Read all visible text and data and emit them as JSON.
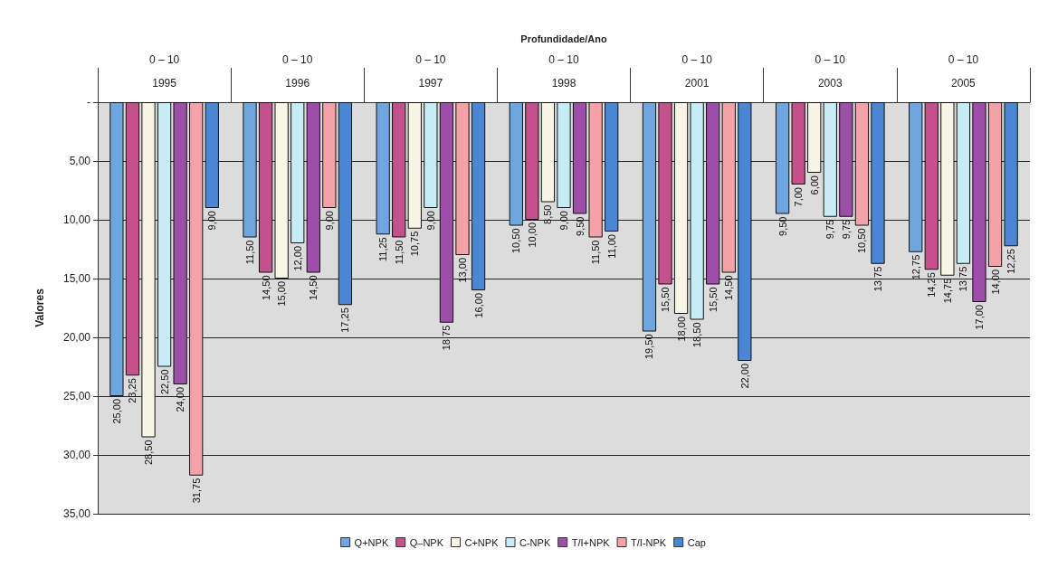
{
  "chart_data": {
    "type": "bar",
    "xlabel": "Profundidade/Ano",
    "ylabel": "Valores",
    "categories": [
      "0 – 10\n1995",
      "0 – 10\n1996",
      "0 – 10\n1997",
      "0 – 10\n1998",
      "0 – 10\n2001",
      "0 – 10\n2003",
      "0 – 10\n2005"
    ],
    "series": [
      {
        "name": "Q+NPK",
        "color": "#6fa6e0",
        "values": [
          25.0,
          11.5,
          11.25,
          10.5,
          19.5,
          9.5,
          12.75
        ],
        "value_labels": [
          "25,00",
          "11,50",
          "11,25",
          "10,50",
          "19,50",
          "9,50",
          "12,75"
        ]
      },
      {
        "name": "Q–NPK",
        "color": "#c4508c",
        "values": [
          23.25,
          14.5,
          11.5,
          10.0,
          15.5,
          7.0,
          14.25
        ],
        "value_labels": [
          "23,25",
          "14,50",
          "11,50",
          "10,00",
          "15,50",
          "7,00",
          "14,25"
        ]
      },
      {
        "name": "C+NPK",
        "color": "#f8f5e6",
        "values": [
          28.5,
          15.0,
          10.75,
          8.5,
          18.0,
          6.0,
          14.75
        ],
        "value_labels": [
          "28,50",
          "15,00",
          "10,75",
          "8,50",
          "18,00",
          "6,00",
          "14,75"
        ]
      },
      {
        "name": "C-NPK",
        "color": "#c6ecf6",
        "values": [
          22.5,
          12.0,
          9.0,
          9.0,
          18.5,
          9.75,
          13.75
        ],
        "value_labels": [
          "22,50",
          "12,00",
          "9,00",
          "9,00",
          "18,50",
          "9,75",
          "13,75"
        ]
      },
      {
        "name": "T/I+NPK",
        "color": "#9c4ea8",
        "values": [
          24.0,
          14.5,
          18.75,
          9.5,
          15.5,
          9.75,
          17.0
        ],
        "value_labels": [
          "24,00",
          "14,50",
          "18,75",
          "9,50",
          "15,50",
          "9,75",
          "17,00"
        ]
      },
      {
        "name": "T/I-NPK",
        "color": "#f4a2a8",
        "values": [
          31.75,
          9.0,
          13.0,
          11.5,
          14.5,
          10.5,
          14.0
        ],
        "value_labels": [
          "31,75",
          "9,00",
          "13,00",
          "11,50",
          "14,50",
          "10,50",
          "14,00"
        ]
      },
      {
        "name": "Cap",
        "color": "#4a86d4",
        "values": [
          9.0,
          17.25,
          16.0,
          11.0,
          22.0,
          13.75,
          12.25
        ],
        "value_labels": [
          "9,00",
          "17,25",
          "16,00",
          "11,00",
          "22,00",
          "13,75",
          "12,25"
        ]
      }
    ],
    "ylim": [
      35,
      0
    ],
    "yticks": [
      {
        "value": 0,
        "label": "-"
      },
      {
        "value": 5,
        "label": "5,00"
      },
      {
        "value": 10,
        "label": "10,00"
      },
      {
        "value": 15,
        "label": "15,00"
      },
      {
        "value": 20,
        "label": "20,00"
      },
      {
        "value": 25,
        "label": "25,00"
      },
      {
        "value": 30,
        "label": "30,00"
      },
      {
        "value": 35,
        "label": "35,00"
      }
    ],
    "grid": "y",
    "legend": "bottom"
  }
}
